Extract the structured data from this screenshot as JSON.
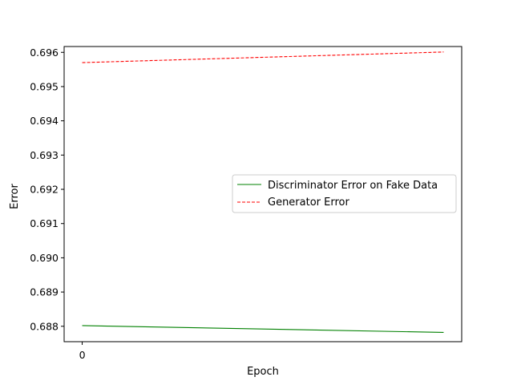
{
  "chart_data": {
    "type": "line",
    "title": "",
    "xlabel": "Epoch",
    "ylabel": "Error",
    "x": [
      0,
      1
    ],
    "xlim": [
      -0.05,
      1.05
    ],
    "ylim": [
      0.68755,
      0.69617
    ],
    "xticks": [
      0
    ],
    "xtick_labels": [
      "0"
    ],
    "yticks": [
      0.688,
      0.689,
      0.69,
      0.691,
      0.692,
      0.693,
      0.694,
      0.695,
      0.696
    ],
    "ytick_labels": [
      "0.688",
      "0.689",
      "0.690",
      "0.691",
      "0.692",
      "0.693",
      "0.694",
      "0.695",
      "0.696"
    ],
    "series": [
      {
        "name": "Discriminator Error on Fake Data",
        "values": [
          0.68802,
          0.68782
        ],
        "color": "#008000",
        "style": "solid"
      },
      {
        "name": "Generator Error",
        "values": [
          0.6957,
          0.69601
        ],
        "color": "#ff0000",
        "style": "dashed"
      }
    ],
    "legend_position": "center-right",
    "grid": false
  }
}
